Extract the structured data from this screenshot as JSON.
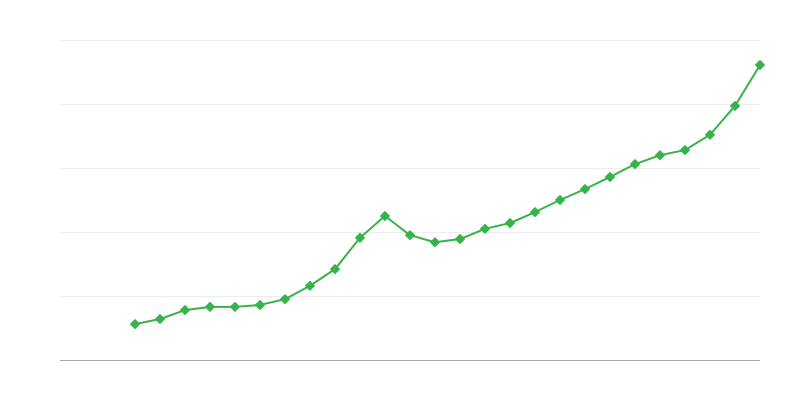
{
  "chart_data": {
    "type": "line",
    "title": "",
    "xlabel": "",
    "ylabel": "",
    "grid": true,
    "legend": "none",
    "color": "#37b34a",
    "xlim": [
      0,
      28
    ],
    "ylim": [
      0,
      5
    ],
    "x": [
      3,
      4,
      5,
      6,
      7,
      8,
      9,
      10,
      11,
      12,
      13,
      14,
      15,
      16,
      17,
      18,
      19,
      20,
      21,
      22,
      23,
      24,
      25,
      26,
      27,
      28
    ],
    "series": [
      {
        "values": [
          0.56,
          0.64,
          0.78,
          0.83,
          0.83,
          0.86,
          0.95,
          1.16,
          1.42,
          1.91,
          2.25,
          1.95,
          1.84,
          1.89,
          2.05,
          2.14,
          2.31,
          2.5,
          2.67,
          2.86,
          3.06,
          3.2,
          3.28,
          3.52,
          3.97,
          4.61
        ]
      }
    ]
  }
}
